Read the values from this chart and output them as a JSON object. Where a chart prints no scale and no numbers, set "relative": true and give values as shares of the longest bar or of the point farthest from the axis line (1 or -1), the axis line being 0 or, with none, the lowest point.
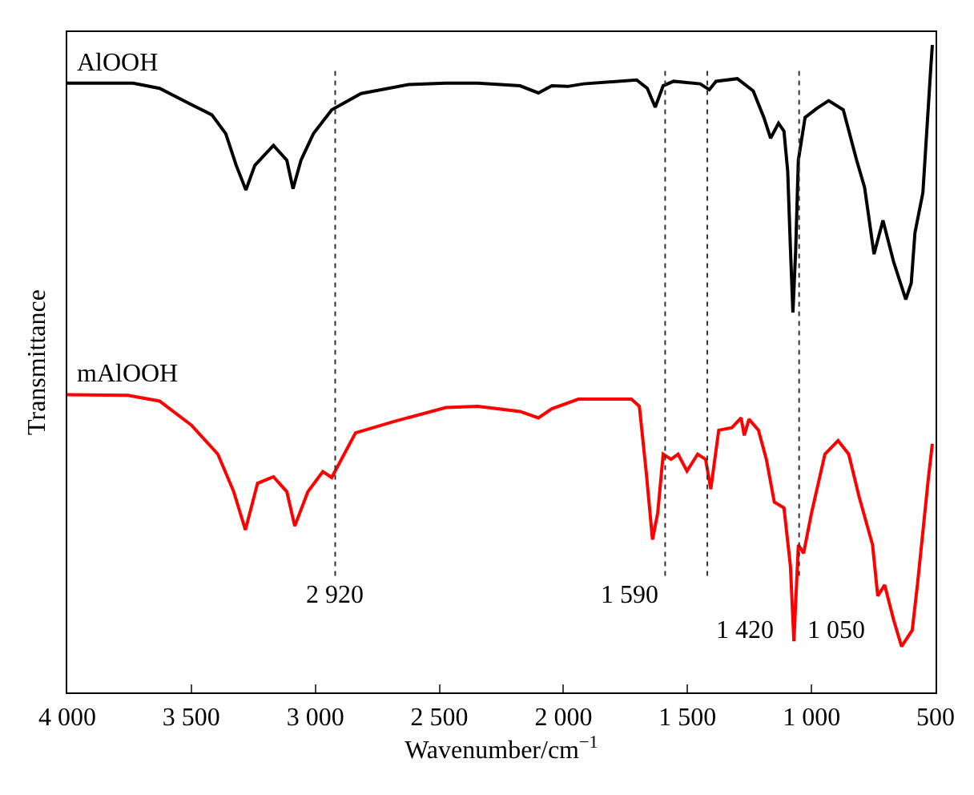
{
  "chart_data": {
    "type": "line",
    "relative": true,
    "xlabel": "Wavenumber/cm$^{−1}$",
    "ylabel": "Transmittance",
    "xlim": [
      4000,
      500
    ],
    "xticks": [
      {
        "value": 4000,
        "label": "4 000"
      },
      {
        "value": 3500,
        "label": "3 500"
      },
      {
        "value": 3000,
        "label": "3 000"
      },
      {
        "value": 2500,
        "label": "2 500"
      },
      {
        "value": 2000,
        "label": "2 000"
      },
      {
        "value": 1500,
        "label": "1 500"
      },
      {
        "value": 1000,
        "label": "1 000"
      },
      500
    ],
    "tick_labels": "x",
    "legend": false,
    "marker": "none",
    "line_style": "solid",
    "series": [
      {
        "name": "AlOOH",
        "color": "#000000",
        "x": [
          4000,
          3735,
          3628,
          3500,
          3417,
          3361,
          3319,
          3280,
          3244,
          3169,
          3115,
          3090,
          3058,
          3008,
          2934,
          2816,
          2624,
          2474,
          2346,
          2175,
          2101,
          2047,
          1983,
          1919,
          1705,
          1662,
          1630,
          1598,
          1556,
          1449,
          1412,
          1385,
          1299,
          1235,
          1192,
          1165,
          1133,
          1111,
          1096,
          1085,
          1075,
          1064,
          1053,
          1026,
          979,
          931,
          872,
          818,
          786,
          748,
          712,
          669,
          620,
          598,
          583,
          551,
          519,
          513
        ],
        "values": [
          0.941,
          0.941,
          0.933,
          0.908,
          0.892,
          0.863,
          0.814,
          0.776,
          0.814,
          0.845,
          0.822,
          0.778,
          0.822,
          0.863,
          0.9,
          0.925,
          0.939,
          0.941,
          0.941,
          0.937,
          0.926,
          0.937,
          0.936,
          0.94,
          0.946,
          0.933,
          0.904,
          0.937,
          0.944,
          0.94,
          0.931,
          0.944,
          0.948,
          0.929,
          0.888,
          0.856,
          0.879,
          0.867,
          0.805,
          0.686,
          0.587,
          0.681,
          0.822,
          0.888,
          0.902,
          0.914,
          0.9,
          0.822,
          0.78,
          0.677,
          0.729,
          0.665,
          0.607,
          0.632,
          0.71,
          0.772,
          0.966,
          1.0
        ]
      },
      {
        "name": "mAlOOH",
        "color": "#ff0000",
        "x": [
          4000,
          3756,
          3628,
          3500,
          3393,
          3329,
          3282,
          3233,
          3169,
          3115,
          3083,
          3030,
          2970,
          2934,
          2838,
          2688,
          2474,
          2346,
          2175,
          2101,
          2047,
          1940,
          1726,
          1694,
          1667,
          1641,
          1620,
          1598,
          1566,
          1538,
          1502,
          1459,
          1427,
          1406,
          1374,
          1321,
          1284,
          1271,
          1252,
          1214,
          1182,
          1150,
          1111,
          1085,
          1071,
          1053,
          1032,
          1000,
          946,
          893,
          850,
          808,
          754,
          733,
          705,
          669,
          637,
          594,
          572,
          530,
          513
        ],
        "values": [
          0.46,
          0.459,
          0.45,
          0.413,
          0.368,
          0.31,
          0.251,
          0.323,
          0.333,
          0.31,
          0.257,
          0.31,
          0.341,
          0.332,
          0.401,
          0.418,
          0.44,
          0.442,
          0.434,
          0.424,
          0.438,
          0.453,
          0.453,
          0.442,
          0.343,
          0.236,
          0.277,
          0.368,
          0.36,
          0.368,
          0.342,
          0.368,
          0.36,
          0.314,
          0.405,
          0.409,
          0.424,
          0.397,
          0.422,
          0.405,
          0.36,
          0.294,
          0.285,
          0.195,
          0.079,
          0.228,
          0.215,
          0.277,
          0.368,
          0.389,
          0.368,
          0.302,
          0.228,
          0.149,
          0.166,
          0.112,
          0.071,
          0.096,
          0.17,
          0.327,
          0.384
        ]
      }
    ],
    "ref_lines": [
      {
        "axis": "x",
        "value": 2920,
        "label": "2 920",
        "color": "#333333",
        "line_style": "dotted"
      },
      {
        "axis": "x",
        "value": 1590,
        "label": "1 590",
        "color": "#333333",
        "line_style": "dotted"
      },
      {
        "axis": "x",
        "value": 1420,
        "label": "1 420",
        "color": "#333333",
        "line_style": "dotted"
      },
      {
        "axis": "x",
        "value": 1050,
        "label": "1 050",
        "color": "#333333",
        "line_style": "dotted"
      }
    ]
  }
}
